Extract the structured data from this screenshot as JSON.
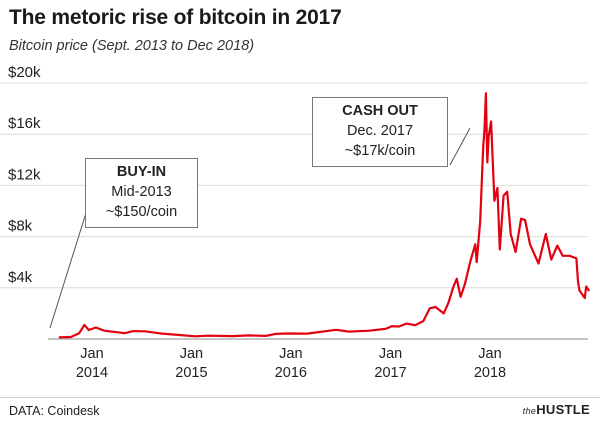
{
  "header": {
    "title": "The metoric rise of bitcoin in 2017",
    "subtitle": "Bitcoin price (Sept. 2013 to Dec 2018)"
  },
  "callouts": {
    "buy": {
      "head": "BUY-IN",
      "line1": "Mid-2013",
      "line2": "~$150/coin"
    },
    "cash": {
      "head": "CASH OUT",
      "line1": "Dec. 2017",
      "line2": "~$17k/coin"
    }
  },
  "footer": {
    "source": "DATA: Coindesk",
    "brand_the": "the",
    "brand_name": "HUSTLE"
  },
  "colors": {
    "series": "#e3000f",
    "grid": "#dcdcdc"
  },
  "chart_data": {
    "type": "line",
    "title": "The metoric rise of bitcoin in 2017",
    "subtitle": "Bitcoin price (Sept. 2013 to Dec 2018)",
    "xlabel": "",
    "ylabel": "",
    "grid": true,
    "ylim": [
      0,
      20000
    ],
    "yticks": [
      {
        "value": 4000,
        "label": "$4k"
      },
      {
        "value": 8000,
        "label": "$8k"
      },
      {
        "value": 12000,
        "label": "$12k"
      },
      {
        "value": 16000,
        "label": "$16k"
      },
      {
        "value": 20000,
        "label": "$20k"
      }
    ],
    "xticks": [
      {
        "date": "2014-01-01",
        "line1": "Jan",
        "line2": "2014"
      },
      {
        "date": "2015-01-01",
        "line1": "Jan",
        "line2": "2015"
      },
      {
        "date": "2016-01-01",
        "line1": "Jan",
        "line2": "2016"
      },
      {
        "date": "2017-01-01",
        "line1": "Jan",
        "line2": "2017"
      },
      {
        "date": "2018-01-01",
        "line1": "Jan",
        "line2": "2018"
      }
    ],
    "series": [
      {
        "values": [
          [
            "2013-09-01",
            130
          ],
          [
            "2013-10-15",
            160
          ],
          [
            "2013-11-15",
            450
          ],
          [
            "2013-12-04",
            1100
          ],
          [
            "2013-12-20",
            700
          ],
          [
            "2014-01-15",
            900
          ],
          [
            "2014-02-15",
            650
          ],
          [
            "2014-03-15",
            580
          ],
          [
            "2014-05-01",
            450
          ],
          [
            "2014-06-01",
            620
          ],
          [
            "2014-07-15",
            600
          ],
          [
            "2014-09-15",
            420
          ],
          [
            "2014-11-01",
            340
          ],
          [
            "2015-01-15",
            210
          ],
          [
            "2015-03-01",
            260
          ],
          [
            "2015-06-01",
            230
          ],
          [
            "2015-08-01",
            280
          ],
          [
            "2015-10-01",
            240
          ],
          [
            "2015-11-05",
            400
          ],
          [
            "2015-12-15",
            430
          ],
          [
            "2016-03-01",
            420
          ],
          [
            "2016-06-15",
            720
          ],
          [
            "2016-08-01",
            580
          ],
          [
            "2016-10-15",
            650
          ],
          [
            "2016-12-15",
            800
          ],
          [
            "2017-01-05",
            1000
          ],
          [
            "2017-02-01",
            980
          ],
          [
            "2017-03-01",
            1200
          ],
          [
            "2017-04-01",
            1080
          ],
          [
            "2017-05-01",
            1400
          ],
          [
            "2017-05-25",
            2400
          ],
          [
            "2017-06-15",
            2500
          ],
          [
            "2017-07-15",
            2000
          ],
          [
            "2017-08-01",
            2800
          ],
          [
            "2017-08-20",
            4100
          ],
          [
            "2017-09-01",
            4700
          ],
          [
            "2017-09-15",
            3300
          ],
          [
            "2017-10-01",
            4300
          ],
          [
            "2017-10-20",
            6000
          ],
          [
            "2017-11-08",
            7400
          ],
          [
            "2017-11-13",
            6000
          ],
          [
            "2017-11-26",
            9200
          ],
          [
            "2017-12-07",
            15000
          ],
          [
            "2017-12-12",
            16500
          ],
          [
            "2017-12-17",
            19200
          ],
          [
            "2017-12-22",
            13800
          ],
          [
            "2017-12-27",
            15800
          ],
          [
            "2018-01-05",
            17000
          ],
          [
            "2018-01-17",
            10800
          ],
          [
            "2018-01-28",
            11800
          ],
          [
            "2018-02-06",
            7000
          ],
          [
            "2018-02-20",
            11200
          ],
          [
            "2018-03-05",
            11500
          ],
          [
            "2018-03-18",
            8200
          ],
          [
            "2018-04-05",
            6800
          ],
          [
            "2018-04-25",
            9400
          ],
          [
            "2018-05-10",
            9300
          ],
          [
            "2018-05-28",
            7400
          ],
          [
            "2018-06-28",
            5900
          ],
          [
            "2018-07-25",
            8200
          ],
          [
            "2018-08-14",
            6200
          ],
          [
            "2018-09-05",
            7300
          ],
          [
            "2018-09-25",
            6500
          ],
          [
            "2018-10-20",
            6500
          ],
          [
            "2018-11-14",
            6300
          ],
          [
            "2018-11-20",
            4500
          ],
          [
            "2018-11-25",
            3800
          ],
          [
            "2018-12-15",
            3200
          ],
          [
            "2018-12-20",
            4100
          ],
          [
            "2018-12-31",
            3750
          ]
        ]
      }
    ]
  }
}
